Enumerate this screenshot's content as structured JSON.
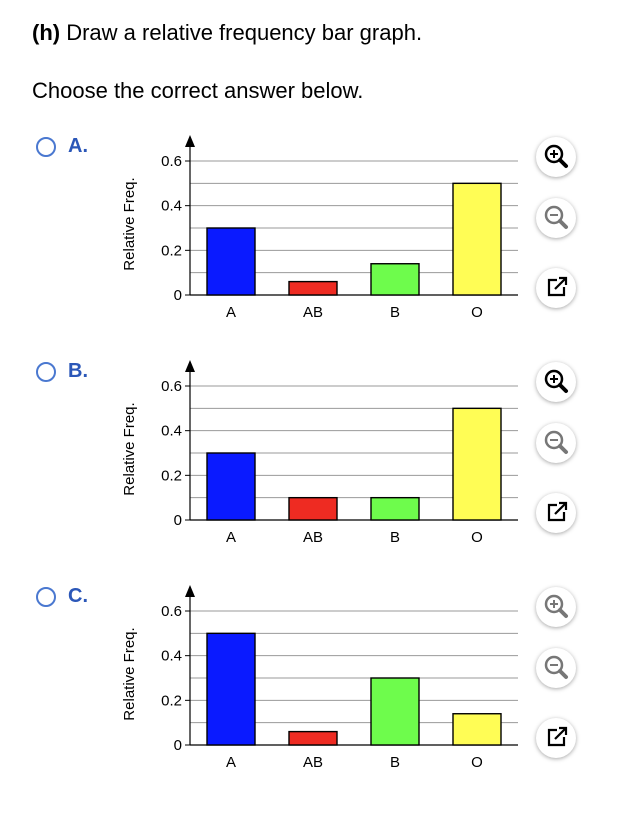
{
  "question": {
    "part": "(h)",
    "text": "Draw a relative frequency bar graph."
  },
  "instruction": "Choose the correct answer below.",
  "options": [
    {
      "label": "A."
    },
    {
      "label": "B."
    },
    {
      "label": "C."
    }
  ],
  "icons": {
    "zoom_in": "zoom-in-icon",
    "zoom_out": "zoom-out-icon",
    "popout": "popout-icon"
  },
  "colors": {
    "radio_border": "#4a78d0",
    "option_label": "#2b57b8",
    "bar_A": "#0a1aff",
    "bar_AB": "#ee2b22",
    "bar_B": "#6efc4c",
    "bar_O": "#fffd55",
    "zoom_in_active": "#000000",
    "zoom_disabled": "#777777"
  },
  "chart_data": [
    {
      "type": "bar",
      "ylabel": "Relative Freq.",
      "categories": [
        "A",
        "AB",
        "B",
        "O"
      ],
      "values": [
        0.3,
        0.06,
        0.14,
        0.5
      ],
      "yticks": [
        0,
        0.2,
        0.4,
        0.6
      ],
      "ytick_labels": [
        "0",
        "0.2",
        "0.4",
        "0.6"
      ],
      "ylim": [
        0,
        0.6
      ],
      "grid": true
    },
    {
      "type": "bar",
      "ylabel": "Relative Freq.",
      "categories": [
        "A",
        "AB",
        "B",
        "O"
      ],
      "values": [
        0.3,
        0.1,
        0.1,
        0.5
      ],
      "yticks": [
        0,
        0.2,
        0.4,
        0.6
      ],
      "ytick_labels": [
        "0",
        "0.2",
        "0.4",
        "0.6"
      ],
      "ylim": [
        0,
        0.6
      ],
      "grid": true
    },
    {
      "type": "bar",
      "ylabel": "Relative Freq.",
      "categories": [
        "A",
        "AB",
        "B",
        "O"
      ],
      "values": [
        0.5,
        0.06,
        0.3,
        0.14
      ],
      "yticks": [
        0,
        0.2,
        0.4,
        0.6
      ],
      "ytick_labels": [
        "0",
        "0.2",
        "0.4",
        "0.6"
      ],
      "ylim": [
        0,
        0.6
      ],
      "grid": true
    }
  ]
}
